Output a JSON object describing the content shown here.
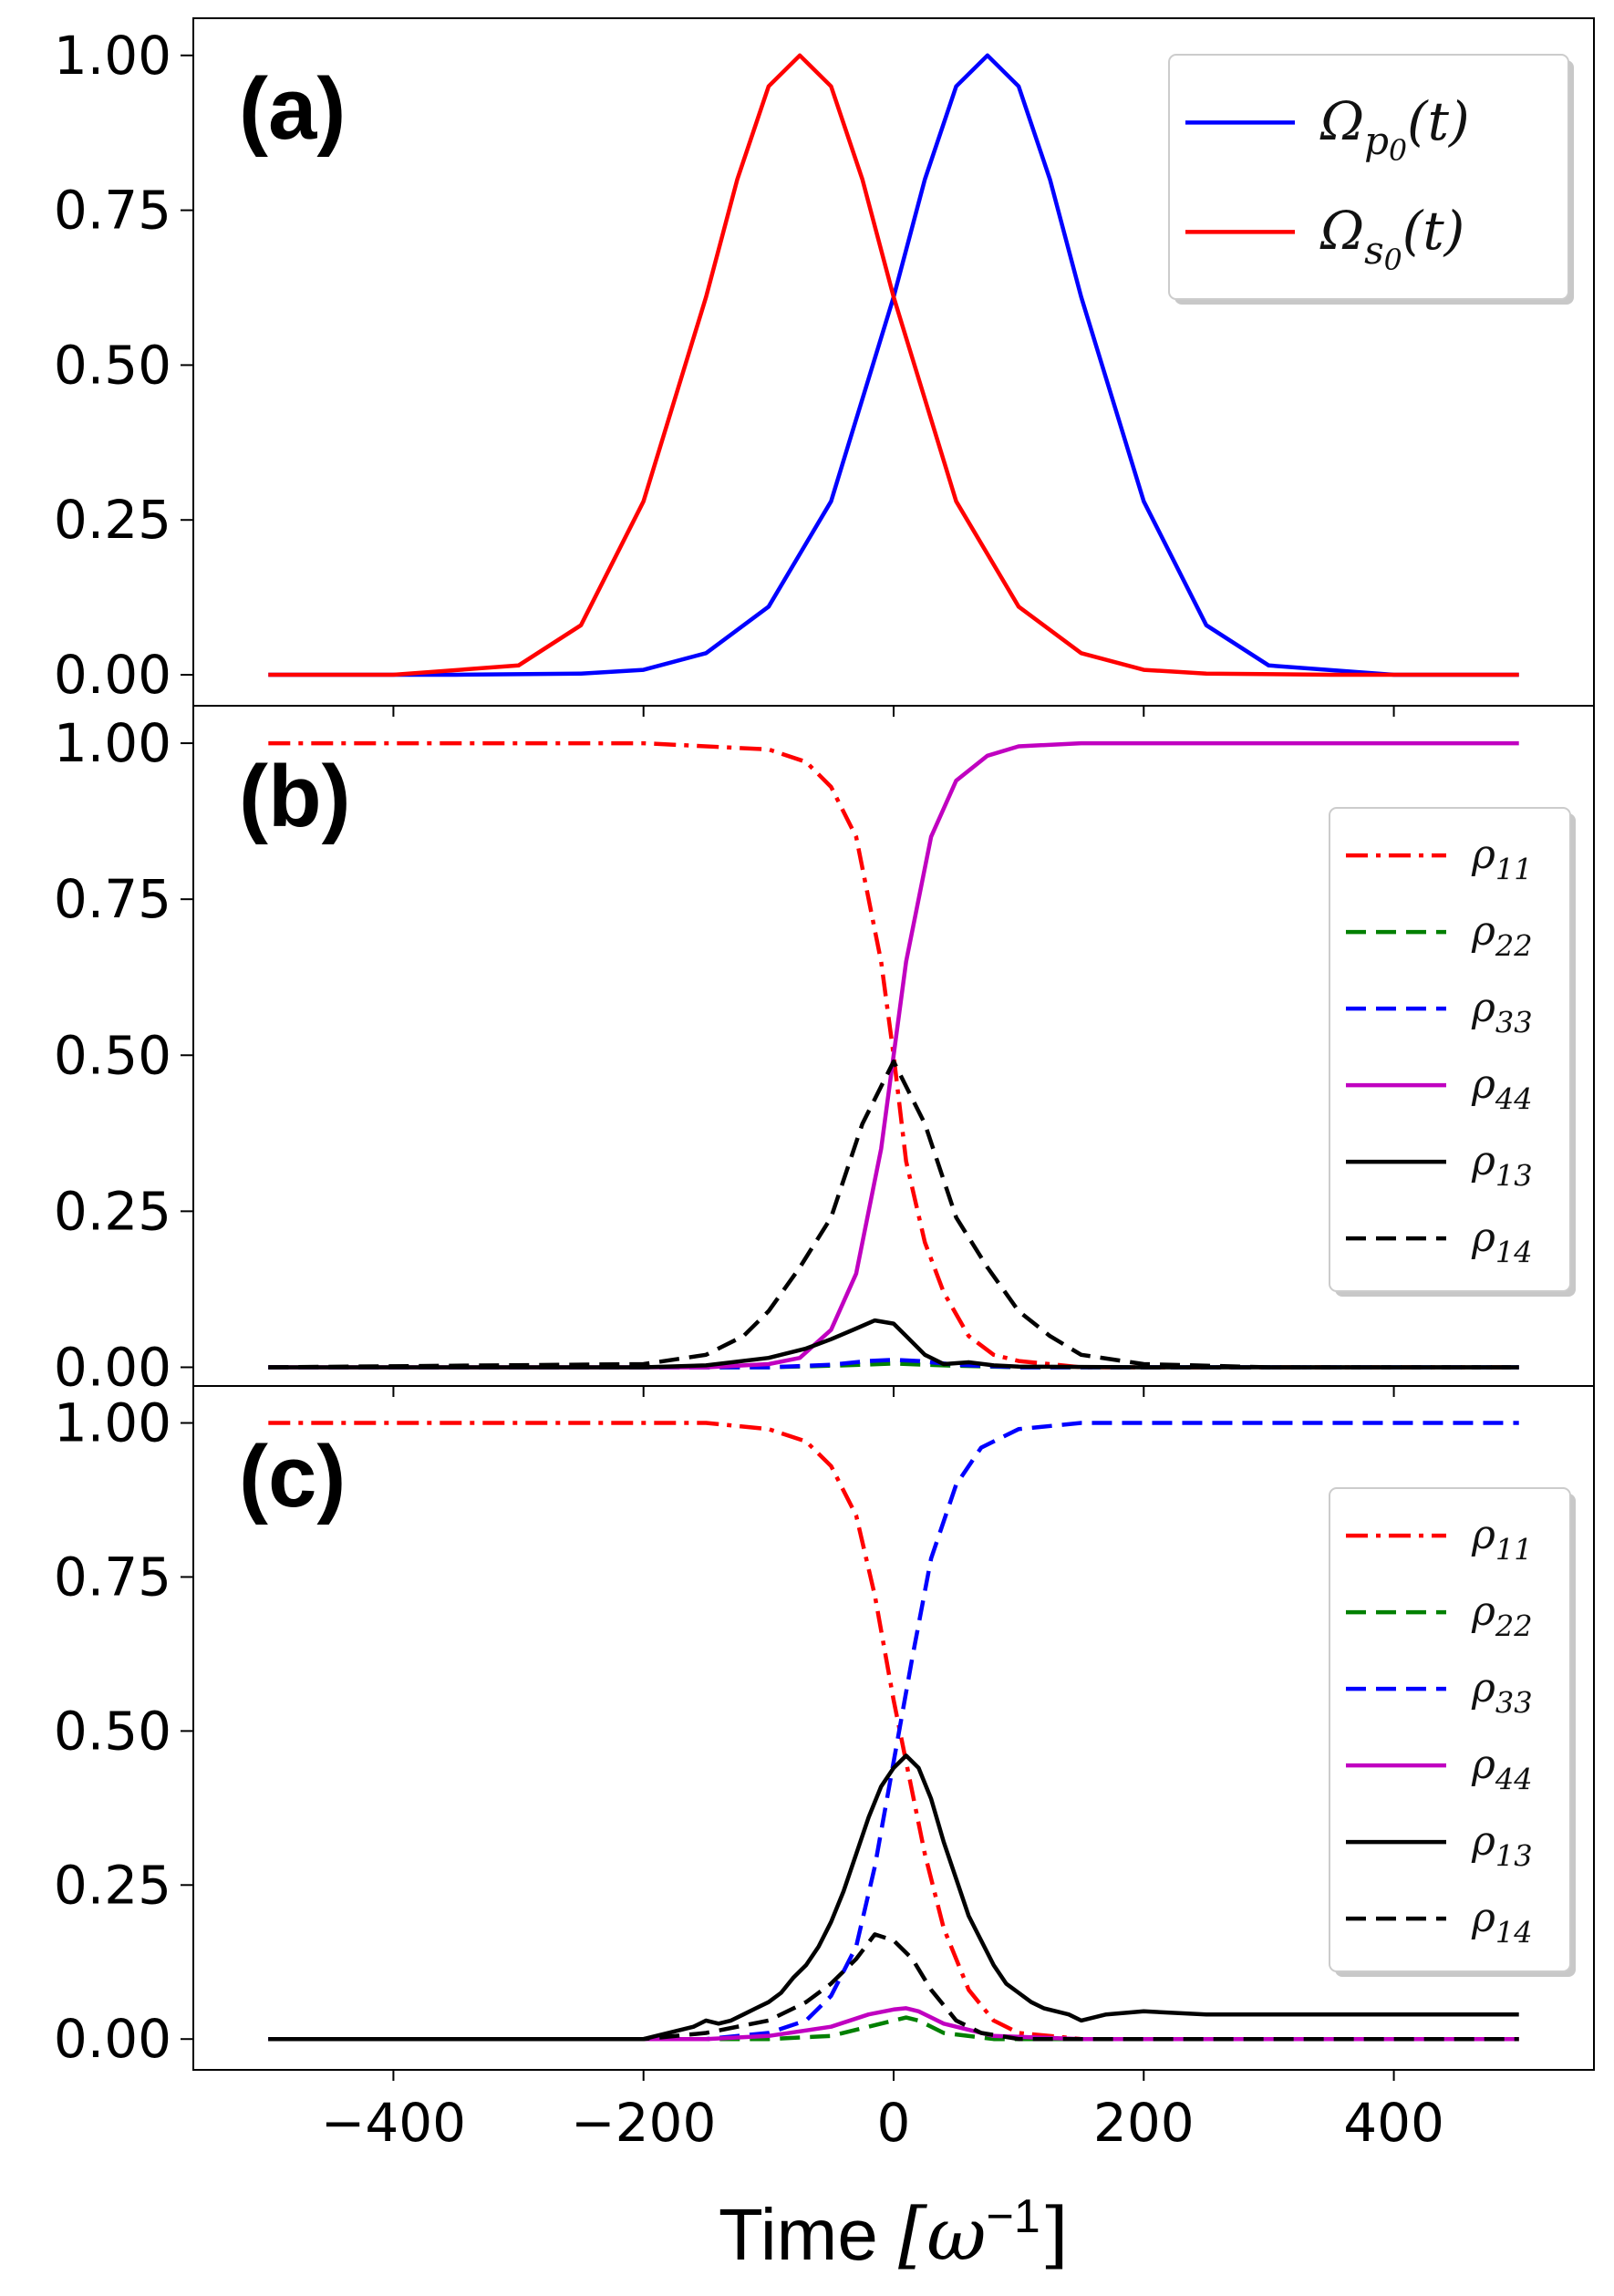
{
  "chart_data": [
    {
      "type": "line",
      "panel_label": "(a)",
      "ylim": [
        -0.05,
        1.06
      ],
      "yticks": [
        "0.00",
        "0.25",
        "0.50",
        "0.75",
        "1.00"
      ],
      "xlim": [
        -560,
        560
      ],
      "legend_position": "top-right",
      "series": [
        {
          "name": "Ω_{p_0}(t)",
          "label_main": "Ω",
          "label_sub": "p",
          "label_subsub": "0",
          "label_tail": "(t)",
          "color": "#0000ff",
          "style": "solid",
          "x": [
            -500,
            -350,
            -250,
            -200,
            -150,
            -100,
            -50,
            0,
            25,
            50,
            75,
            100,
            125,
            150,
            200,
            250,
            300,
            400,
            500
          ],
          "y": [
            0,
            0,
            0.002,
            0.008,
            0.035,
            0.11,
            0.28,
            0.61,
            0.8,
            0.95,
            1.0,
            0.95,
            0.8,
            0.61,
            0.28,
            0.08,
            0.015,
            0,
            0
          ]
        },
        {
          "name": "Ω_{s_0}(t)",
          "label_main": "Ω",
          "label_sub": "s",
          "label_subsub": "0",
          "label_tail": "(t)",
          "color": "#ff0000",
          "style": "solid",
          "x": [
            -500,
            -400,
            -300,
            -250,
            -200,
            -150,
            -125,
            -100,
            -75,
            -50,
            -25,
            0,
            50,
            100,
            150,
            200,
            250,
            350,
            500
          ],
          "y": [
            0,
            0,
            0.015,
            0.08,
            0.28,
            0.61,
            0.8,
            0.95,
            1.0,
            0.95,
            0.8,
            0.61,
            0.28,
            0.11,
            0.035,
            0.008,
            0.002,
            0,
            0
          ]
        }
      ]
    },
    {
      "type": "line",
      "panel_label": "(b)",
      "ylim": [
        -0.03,
        1.06
      ],
      "yticks": [
        "0.00",
        "0.25",
        "0.50",
        "0.75",
        "1.00"
      ],
      "xlim": [
        -560,
        560
      ],
      "legend_position": "right",
      "series": [
        {
          "name": "ρ11",
          "label_main": "ρ",
          "label_sub": "11",
          "color": "#ff0000",
          "style": "dashdot",
          "x": [
            -500,
            -200,
            -100,
            -70,
            -50,
            -30,
            -10,
            0,
            10,
            25,
            40,
            60,
            80,
            100,
            150,
            500
          ],
          "y": [
            1.0,
            1.0,
            0.99,
            0.97,
            0.93,
            0.85,
            0.65,
            0.5,
            0.33,
            0.2,
            0.12,
            0.05,
            0.02,
            0.01,
            0,
            0
          ]
        },
        {
          "name": "ρ22",
          "label_main": "ρ",
          "label_sub": "22",
          "color": "#008000",
          "style": "dashed",
          "x": [
            -500,
            -100,
            -40,
            0,
            40,
            100,
            500
          ],
          "y": [
            0,
            0,
            0.003,
            0.006,
            0.003,
            0,
            0
          ]
        },
        {
          "name": "ρ33",
          "label_main": "ρ",
          "label_sub": "33",
          "color": "#0000ff",
          "style": "dashed",
          "x": [
            -500,
            -100,
            -50,
            -20,
            0,
            20,
            50,
            100,
            500
          ],
          "y": [
            0,
            0,
            0.004,
            0.01,
            0.012,
            0.01,
            0.004,
            0,
            0
          ]
        },
        {
          "name": "ρ44",
          "label_main": "ρ",
          "label_sub": "44",
          "color": "#c000c0",
          "style": "solid",
          "x": [
            -500,
            -150,
            -100,
            -75,
            -50,
            -30,
            -10,
            0,
            10,
            30,
            50,
            75,
            100,
            150,
            200,
            500
          ],
          "y": [
            0,
            0,
            0.005,
            0.015,
            0.06,
            0.15,
            0.35,
            0.5,
            0.65,
            0.85,
            0.94,
            0.98,
            0.995,
            1.0,
            1.0,
            1.0
          ]
        },
        {
          "name": "ρ13",
          "label_main": "ρ",
          "label_sub": "13",
          "color": "#000000",
          "style": "solid",
          "x": [
            -500,
            -200,
            -150,
            -100,
            -70,
            -50,
            -30,
            -15,
            0,
            10,
            25,
            40,
            60,
            80,
            100,
            200,
            500
          ],
          "y": [
            0,
            0,
            0.003,
            0.015,
            0.03,
            0.045,
            0.062,
            0.075,
            0.07,
            0.05,
            0.02,
            0.005,
            0.008,
            0.003,
            0.001,
            0,
            0
          ]
        },
        {
          "name": "ρ14",
          "label_main": "ρ",
          "label_sub": "14",
          "color": "#000000",
          "style": "dashed",
          "x": [
            -500,
            -200,
            -150,
            -120,
            -100,
            -75,
            -50,
            -25,
            0,
            25,
            50,
            75,
            100,
            125,
            150,
            200,
            300,
            500
          ],
          "y": [
            0,
            0.005,
            0.02,
            0.05,
            0.09,
            0.16,
            0.24,
            0.39,
            0.49,
            0.39,
            0.24,
            0.16,
            0.09,
            0.05,
            0.02,
            0.005,
            0,
            0
          ]
        }
      ]
    },
    {
      "type": "line",
      "panel_label": "(c)",
      "ylim": [
        -0.05,
        1.06
      ],
      "yticks": [
        "0.00",
        "0.25",
        "0.50",
        "0.75",
        "1.00"
      ],
      "xlim": [
        -560,
        560
      ],
      "xticks": [
        "−400",
        "−200",
        "0",
        "200",
        "400"
      ],
      "xlabel_main": "Time ",
      "xlabel_unit": "[ω",
      "xlabel_sup": "−1",
      "xlabel_close": "]",
      "legend_position": "right",
      "series": [
        {
          "name": "ρ11",
          "label_main": "ρ",
          "label_sub": "11",
          "color": "#ff0000",
          "style": "dashdot",
          "x": [
            -500,
            -150,
            -100,
            -70,
            -50,
            -30,
            -15,
            0,
            10,
            25,
            40,
            60,
            80,
            100,
            150,
            500
          ],
          "y": [
            1.0,
            1.0,
            0.99,
            0.97,
            0.93,
            0.85,
            0.72,
            0.55,
            0.45,
            0.3,
            0.18,
            0.08,
            0.03,
            0.01,
            0,
            0
          ]
        },
        {
          "name": "ρ22",
          "label_main": "ρ",
          "label_sub": "22",
          "color": "#008000",
          "style": "dashed",
          "x": [
            -500,
            -100,
            -50,
            -20,
            0,
            10,
            20,
            40,
            80,
            500
          ],
          "y": [
            0,
            0,
            0.005,
            0.02,
            0.03,
            0.035,
            0.03,
            0.01,
            0,
            0
          ]
        },
        {
          "name": "ρ33",
          "label_main": "ρ",
          "label_sub": "33",
          "color": "#0000ff",
          "style": "dashed",
          "x": [
            -500,
            -150,
            -100,
            -70,
            -50,
            -30,
            -15,
            0,
            15,
            30,
            50,
            70,
            100,
            150,
            200,
            500
          ],
          "y": [
            0,
            0,
            0.01,
            0.03,
            0.07,
            0.15,
            0.28,
            0.45,
            0.62,
            0.78,
            0.9,
            0.96,
            0.99,
            1.0,
            1.0,
            1.0
          ]
        },
        {
          "name": "ρ44",
          "label_main": "ρ",
          "label_sub": "44",
          "color": "#c000c0",
          "style": "solid",
          "x": [
            -500,
            -150,
            -100,
            -50,
            -20,
            0,
            10,
            20,
            40,
            80,
            150,
            500
          ],
          "y": [
            0,
            0,
            0.005,
            0.02,
            0.04,
            0.048,
            0.05,
            0.045,
            0.025,
            0.005,
            0,
            0
          ]
        },
        {
          "name": "ρ13",
          "label_main": "ρ",
          "label_sub": "13",
          "color": "#000000",
          "style": "solid",
          "x": [
            -500,
            -200,
            -160,
            -150,
            -140,
            -130,
            -120,
            -110,
            -100,
            -90,
            -80,
            -70,
            -60,
            -50,
            -40,
            -30,
            -20,
            -10,
            0,
            10,
            20,
            30,
            40,
            50,
            60,
            70,
            80,
            90,
            100,
            110,
            120,
            130,
            140,
            150,
            170,
            200,
            250,
            300,
            400,
            500
          ],
          "y": [
            0,
            0,
            0.02,
            0.03,
            0.025,
            0.03,
            0.04,
            0.05,
            0.06,
            0.075,
            0.1,
            0.12,
            0.15,
            0.19,
            0.24,
            0.3,
            0.36,
            0.41,
            0.44,
            0.46,
            0.44,
            0.39,
            0.32,
            0.26,
            0.2,
            0.16,
            0.12,
            0.09,
            0.075,
            0.06,
            0.05,
            0.045,
            0.04,
            0.03,
            0.04,
            0.045,
            0.04,
            0.04,
            0.04,
            0.04
          ]
        },
        {
          "name": "ρ14",
          "label_main": "ρ",
          "label_sub": "14",
          "color": "#000000",
          "style": "dashed",
          "x": [
            -500,
            -200,
            -150,
            -100,
            -70,
            -50,
            -30,
            -15,
            0,
            15,
            30,
            50,
            70,
            100,
            150,
            500
          ],
          "y": [
            0,
            0,
            0.01,
            0.03,
            0.06,
            0.09,
            0.13,
            0.17,
            0.16,
            0.13,
            0.08,
            0.03,
            0.01,
            0,
            0,
            0
          ]
        }
      ]
    }
  ]
}
